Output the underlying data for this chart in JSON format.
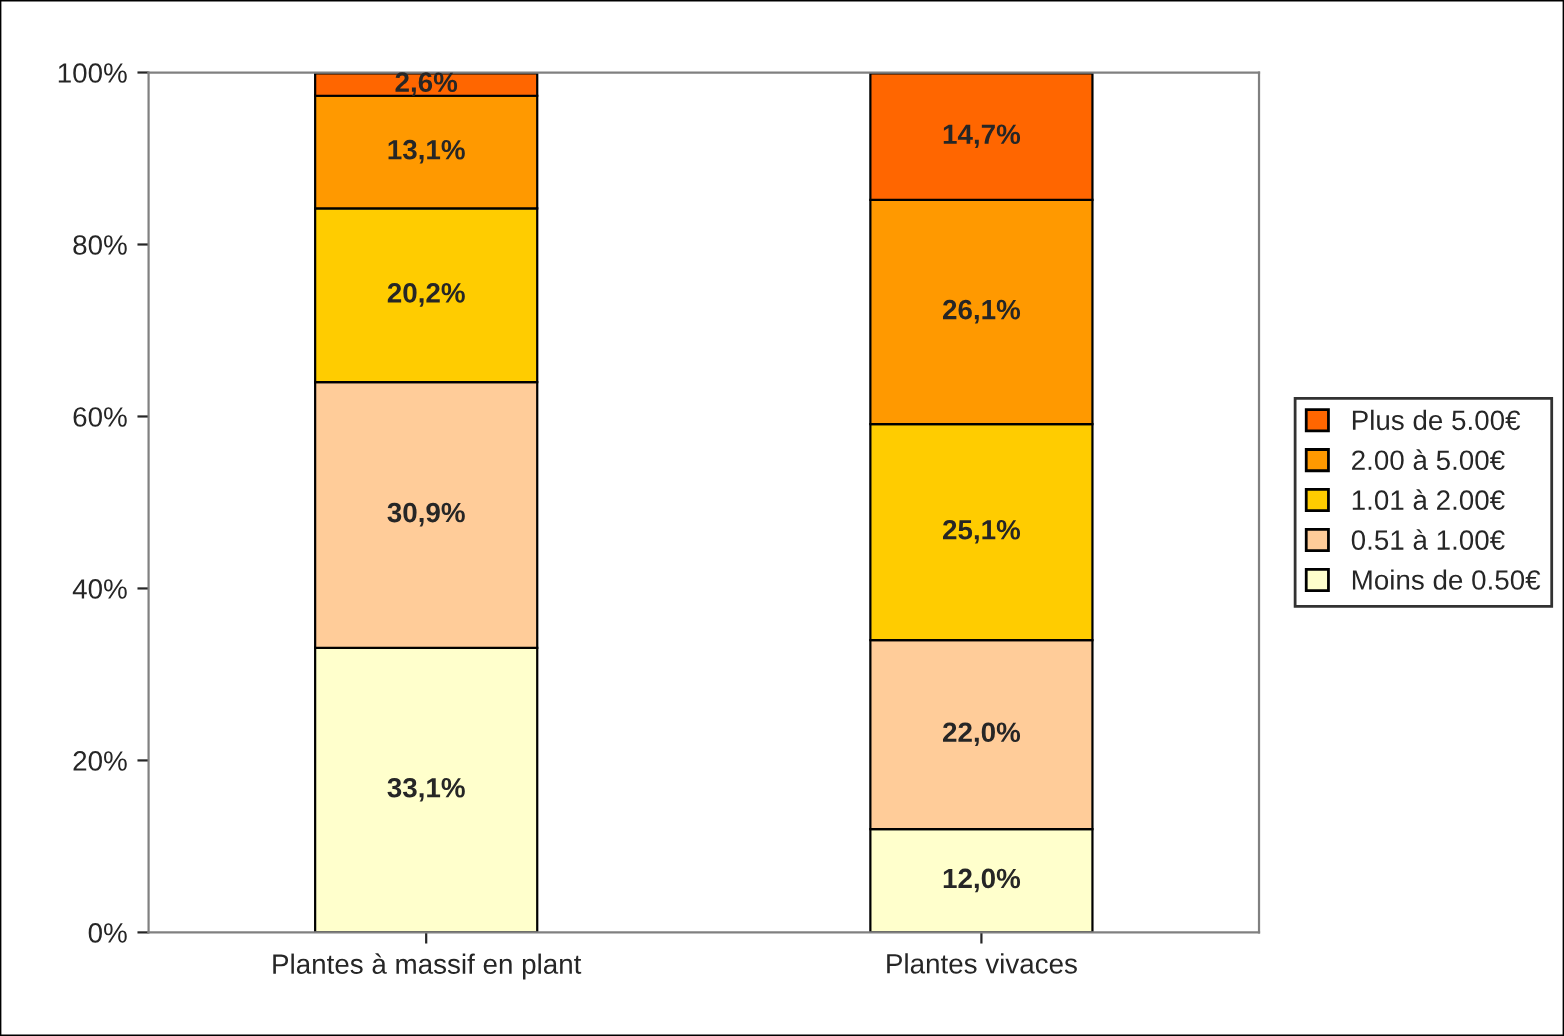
{
  "chart_data": {
    "type": "bar",
    "stacked": true,
    "categories": [
      "Plantes à massif en plant",
      "Plantes vivaces"
    ],
    "series": [
      {
        "name": "Moins de 0.50€",
        "color": "#ffffcc",
        "values": [
          33.1,
          12.0
        ],
        "value_labels": [
          "33,1%",
          "12,0%"
        ]
      },
      {
        "name": "0.51 à 1.00€",
        "color": "#ffcc99",
        "values": [
          30.9,
          22.0
        ],
        "value_labels": [
          "30,9%",
          "22,0%"
        ]
      },
      {
        "name": "1.01 à 2.00€",
        "color": "#ffcc00",
        "values": [
          20.2,
          25.1
        ],
        "value_labels": [
          "20,2%",
          "25,1%"
        ]
      },
      {
        "name": "2.00 à 5.00€",
        "color": "#ff9900",
        "values": [
          13.1,
          26.1
        ],
        "value_labels": [
          "13,1%",
          "26,1%"
        ]
      },
      {
        "name": "Plus de 5.00€",
        "color": "#ff6600",
        "values": [
          2.6,
          14.7
        ],
        "value_labels": [
          "2,6%",
          "14,7%"
        ]
      }
    ],
    "ylim": [
      0,
      100
    ],
    "yticks": [
      {
        "value": 0,
        "label": "0%"
      },
      {
        "value": 20,
        "label": "20%"
      },
      {
        "value": 40,
        "label": "40%"
      },
      {
        "value": 60,
        "label": "60%"
      },
      {
        "value": 80,
        "label": "80%"
      },
      {
        "value": 100,
        "label": "100%"
      }
    ],
    "grid": false,
    "legend": "right"
  }
}
